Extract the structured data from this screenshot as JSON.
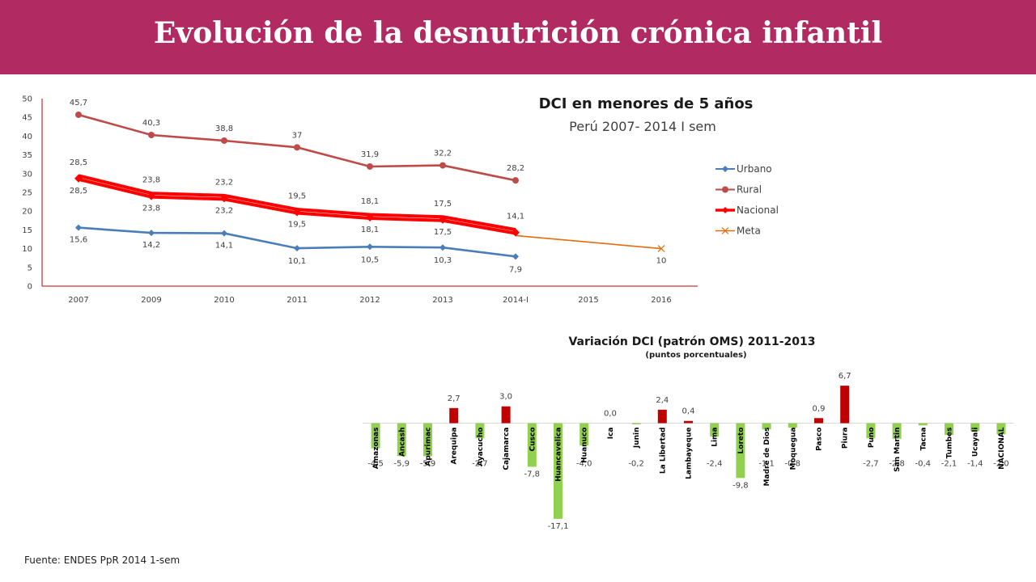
{
  "header": {
    "title": "Evolución de la desnutrición crónica infantil"
  },
  "footer": {
    "source": "Fuente: ENDES PpR 2014 1-sem"
  },
  "colors": {
    "banner": "#b22a62",
    "urbano": "#4a7ebb",
    "rural": "#be4b48",
    "nacional": "#ff0000",
    "meta": "#e46c0a",
    "bar_positive": "#c00000",
    "bar_negative": "#92d050"
  },
  "chart_data": [
    {
      "type": "line",
      "title": "DCI en menores de 5 años",
      "subtitle": "Perú 2007- 2014 I sem",
      "categories": [
        "2007",
        "2009",
        "2010",
        "2011",
        "2012",
        "2013",
        "2014-I",
        "2015",
        "2016"
      ],
      "ylim": [
        0,
        50
      ],
      "yticks": [
        0,
        5,
        10,
        15,
        20,
        25,
        30,
        35,
        40,
        45,
        50
      ],
      "grid": false,
      "legend": "right",
      "series": [
        {
          "name": "Urbano",
          "values": [
            15.6,
            14.2,
            14.1,
            10.1,
            10.5,
            10.3,
            7.9,
            null,
            null
          ],
          "labels": [
            "15,6",
            "14,2",
            "14,1",
            "10,1",
            "10,5",
            "10,3",
            "7,9",
            "",
            ""
          ]
        },
        {
          "name": "Rural",
          "values": [
            45.7,
            40.3,
            38.8,
            37,
            31.9,
            32.2,
            28.2,
            null,
            null
          ],
          "labels": [
            "45,7",
            "40,3",
            "38,8",
            "37",
            "31,9",
            "32,2",
            "28,2",
            "",
            ""
          ]
        },
        {
          "name": "Nacional",
          "values": [
            28.5,
            23.8,
            23.2,
            19.5,
            18.1,
            17.5,
            14.1,
            null,
            null
          ],
          "labels": [
            "28,5",
            "23,8",
            "23,2",
            "19,5",
            "18,1",
            "17,5",
            "14,1",
            "",
            ""
          ]
        },
        {
          "name": "Meta",
          "values": [
            null,
            null,
            null,
            null,
            null,
            null,
            13.5,
            null,
            10
          ],
          "labels": [
            "",
            "",
            "",
            "",
            "",
            "",
            "",
            "",
            "10"
          ]
        }
      ],
      "extra_labels": [
        {
          "category": "2007",
          "text": "28,5"
        },
        {
          "category": "2009",
          "text": "23,8"
        },
        {
          "category": "2010",
          "text": "23,2"
        },
        {
          "category": "2011",
          "text": "19,5"
        },
        {
          "category": "2012",
          "text": "18,1"
        },
        {
          "category": "2013",
          "text": "17,5"
        }
      ]
    },
    {
      "type": "bar",
      "title": "Variación DCI (patrón OMS) 2011-2013",
      "subtitle": "(puntos porcentuales)",
      "categories": [
        "Amazonas",
        "Ancash",
        "Apurimac",
        "Arequipa",
        "Ayacucho",
        "Cajamarca",
        "Cusco",
        "Huancavelica",
        "Huanuco",
        "Ica",
        "Junin",
        "La Libertad",
        "Lambayeque",
        "Lima",
        "Loreto",
        "Madre de Dios",
        "Moquegua",
        "Pasco",
        "Piura",
        "Puno",
        "San Martin",
        "Tacna",
        "Tumbes",
        "Ucayali",
        "NACIONAL"
      ],
      "values": [
        -4.5,
        -5.9,
        -5.9,
        2.7,
        -2.7,
        3.0,
        -7.8,
        -17.1,
        -4.0,
        0.0,
        -0.2,
        2.4,
        0.4,
        -2.4,
        -9.8,
        -1.1,
        -0.8,
        0.9,
        6.7,
        -2.7,
        -2.8,
        -0.4,
        -2.1,
        -1.4,
        -2.0
      ],
      "labels": [
        "-4,5",
        "-5,9",
        "-5,9",
        "2,7",
        "-2,7",
        "3,0",
        "-7,8",
        "-17,1",
        "-4,0",
        "0,0",
        "-0,2",
        "2,4",
        "0,4",
        "-2,4",
        "-9,8",
        "-1,1",
        "-0,8",
        "0,9",
        "6,7",
        "-2,7",
        "-2,8",
        "-0,4",
        "-2,1",
        "-1,4",
        "-2,0"
      ]
    }
  ]
}
